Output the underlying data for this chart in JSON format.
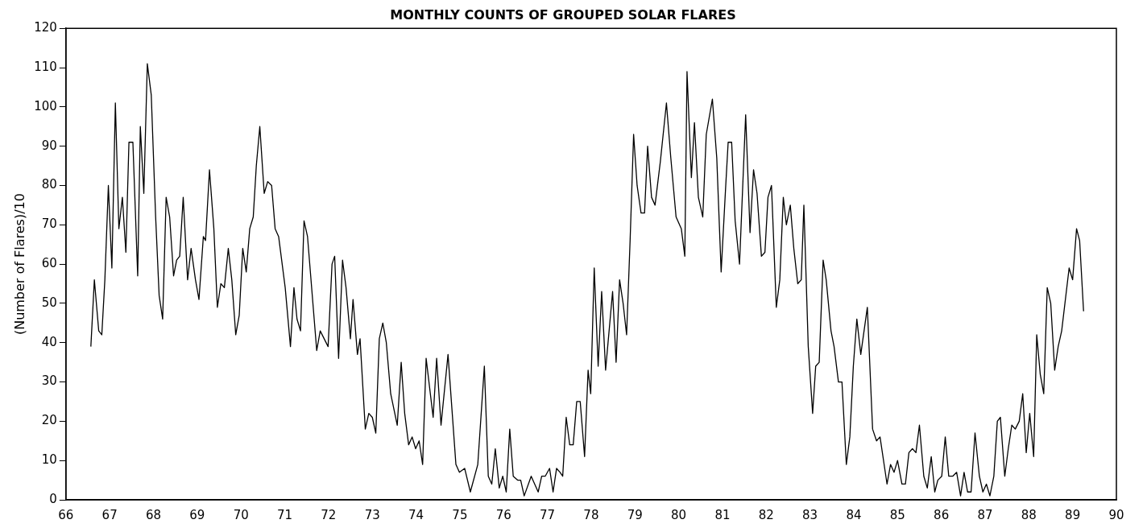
{
  "chart_data": {
    "type": "line",
    "title": "MONTHLY COUNTS OF GROUPED SOLAR FLARES",
    "ylabel": "(Number of Flares)/10",
    "xlim": [
      66,
      90
    ],
    "xticks": [
      66,
      67,
      68,
      69,
      70,
      71,
      72,
      73,
      74,
      75,
      76,
      77,
      78,
      79,
      80,
      81,
      82,
      83,
      84,
      85,
      86,
      87,
      88,
      89,
      90
    ],
    "ylim": [
      0,
      120
    ],
    "yticks": [
      0,
      10,
      20,
      30,
      40,
      50,
      60,
      70,
      80,
      90,
      100,
      110,
      120
    ],
    "grid": false,
    "legend": false,
    "marker": "none",
    "line_style": "solid",
    "series": [
      {
        "color": "#000000",
        "x": [
          66.57,
          66.65,
          66.75,
          66.82,
          66.89,
          66.97,
          67.05,
          67.13,
          67.21,
          67.29,
          67.37,
          67.44,
          67.53,
          67.64,
          67.7,
          67.78,
          67.86,
          67.95,
          68.05,
          68.13,
          68.21,
          68.29,
          68.37,
          68.46,
          68.53,
          68.6,
          68.68,
          68.78,
          68.86,
          68.96,
          69.04,
          69.14,
          69.19,
          69.28,
          69.38,
          69.46,
          69.54,
          69.62,
          69.71,
          69.79,
          69.88,
          69.96,
          70.04,
          70.12,
          70.2,
          70.28,
          70.35,
          70.43,
          70.53,
          70.61,
          70.7,
          70.78,
          70.86,
          71.01,
          71.13,
          71.21,
          71.28,
          71.36,
          71.44,
          71.52,
          71.73,
          71.81,
          71.99,
          72.08,
          72.14,
          72.23,
          72.32,
          72.4,
          72.5,
          72.56,
          72.66,
          72.72,
          72.84,
          72.92,
          73.0,
          73.08,
          73.16,
          73.24,
          73.32,
          73.42,
          73.57,
          73.66,
          73.74,
          73.83,
          73.91,
          73.99,
          74.07,
          74.15,
          74.23,
          74.39,
          74.47,
          74.57,
          74.73,
          74.91,
          74.99,
          75.11,
          75.24,
          75.41,
          75.56,
          75.65,
          75.73,
          75.81,
          75.9,
          75.98,
          76.06,
          76.14,
          76.22,
          76.32,
          76.39,
          76.47,
          76.63,
          76.79,
          76.87,
          76.95,
          77.05,
          77.13,
          77.21,
          77.29,
          77.35,
          77.43,
          77.51,
          77.59,
          77.67,
          77.75,
          77.85,
          77.93,
          77.99,
          78.07,
          78.16,
          78.24,
          78.33,
          78.49,
          78.57,
          78.65,
          78.73,
          78.81,
          78.89,
          78.97,
          79.05,
          79.14,
          79.22,
          79.29,
          79.38,
          79.46,
          79.58,
          79.72,
          79.82,
          79.94,
          80.06,
          80.14,
          80.19,
          80.29,
          80.36,
          80.45,
          80.55,
          80.63,
          80.77,
          80.87,
          80.97,
          81.07,
          81.13,
          81.21,
          81.29,
          81.39,
          81.53,
          81.63,
          81.71,
          81.79,
          81.89,
          81.97,
          82.04,
          82.12,
          82.23,
          82.31,
          82.39,
          82.46,
          82.55,
          82.63,
          82.72,
          82.8,
          82.86,
          82.96,
          83.06,
          83.13,
          83.21,
          83.3,
          83.37,
          83.48,
          83.55,
          83.65,
          83.73,
          83.83,
          83.91,
          83.99,
          84.07,
          84.16,
          84.31,
          84.43,
          84.52,
          84.6,
          84.76,
          84.84,
          84.92,
          85.0,
          85.1,
          85.18,
          85.26,
          85.34,
          85.42,
          85.5,
          85.6,
          85.68,
          85.77,
          85.85,
          85.92,
          86.01,
          86.09,
          86.17,
          86.26,
          86.35,
          86.44,
          86.52,
          86.6,
          86.68,
          86.77,
          86.87,
          86.95,
          87.03,
          87.11,
          87.2,
          87.28,
          87.35,
          87.45,
          87.53,
          87.61,
          87.69,
          87.78,
          87.86,
          87.94,
          88.02,
          88.11,
          88.18,
          88.26,
          88.34,
          88.42,
          88.5,
          88.59,
          88.67,
          88.75,
          88.92,
          89.0,
          89.09,
          89.16,
          89.25
        ],
        "values": [
          39,
          56,
          43,
          42,
          56,
          80,
          59,
          101,
          69,
          77,
          63,
          91,
          91,
          57,
          95,
          78,
          111,
          103,
          72,
          52,
          46,
          77,
          72,
          57,
          61,
          62,
          77,
          56,
          64,
          56,
          51,
          67,
          66,
          84,
          69,
          49,
          55,
          54,
          64,
          56,
          42,
          47,
          64,
          58,
          69,
          72,
          85,
          95,
          78,
          81,
          80,
          69,
          67,
          54,
          39,
          54,
          46,
          43,
          71,
          67,
          38,
          43,
          39,
          60,
          62,
          36,
          61,
          54,
          41,
          51,
          37,
          41,
          18,
          22,
          21,
          17,
          41,
          45,
          40,
          27,
          19,
          35,
          22,
          14,
          16,
          13,
          15,
          9,
          36,
          21,
          36,
          19,
          37,
          9,
          7,
          8,
          2,
          9,
          34,
          6,
          4,
          13,
          3,
          6,
          2,
          18,
          6,
          5,
          5,
          1,
          6,
          2,
          6,
          6,
          8,
          2,
          8,
          7,
          6,
          21,
          14,
          14,
          25,
          25,
          11,
          33,
          27,
          59,
          34,
          53,
          33,
          53,
          35,
          56,
          50,
          42,
          66,
          93,
          80,
          73,
          73,
          90,
          77,
          75,
          86,
          101,
          87,
          72,
          69,
          62,
          109,
          82,
          96,
          77,
          72,
          93,
          102,
          87,
          58,
          79,
          91,
          91,
          71,
          60,
          98,
          68,
          84,
          78,
          62,
          63,
          77,
          80,
          49,
          56,
          77,
          70,
          75,
          64,
          55,
          56,
          75,
          39,
          22,
          34,
          35,
          61,
          56,
          43,
          39,
          30,
          30,
          9,
          16,
          34,
          46,
          37,
          49,
          18,
          15,
          16,
          4,
          9,
          7,
          10,
          4,
          4,
          12,
          13,
          12,
          19,
          6,
          3,
          11,
          2,
          5,
          6,
          16,
          6,
          6,
          7,
          1,
          7,
          2,
          2,
          17,
          6,
          2,
          4,
          1,
          6,
          20,
          21,
          6,
          13,
          19,
          18,
          20,
          27,
          12,
          22,
          11,
          42,
          32,
          27,
          54,
          50,
          33,
          39,
          43,
          59,
          56,
          69,
          66,
          48
        ]
      }
    ]
  }
}
